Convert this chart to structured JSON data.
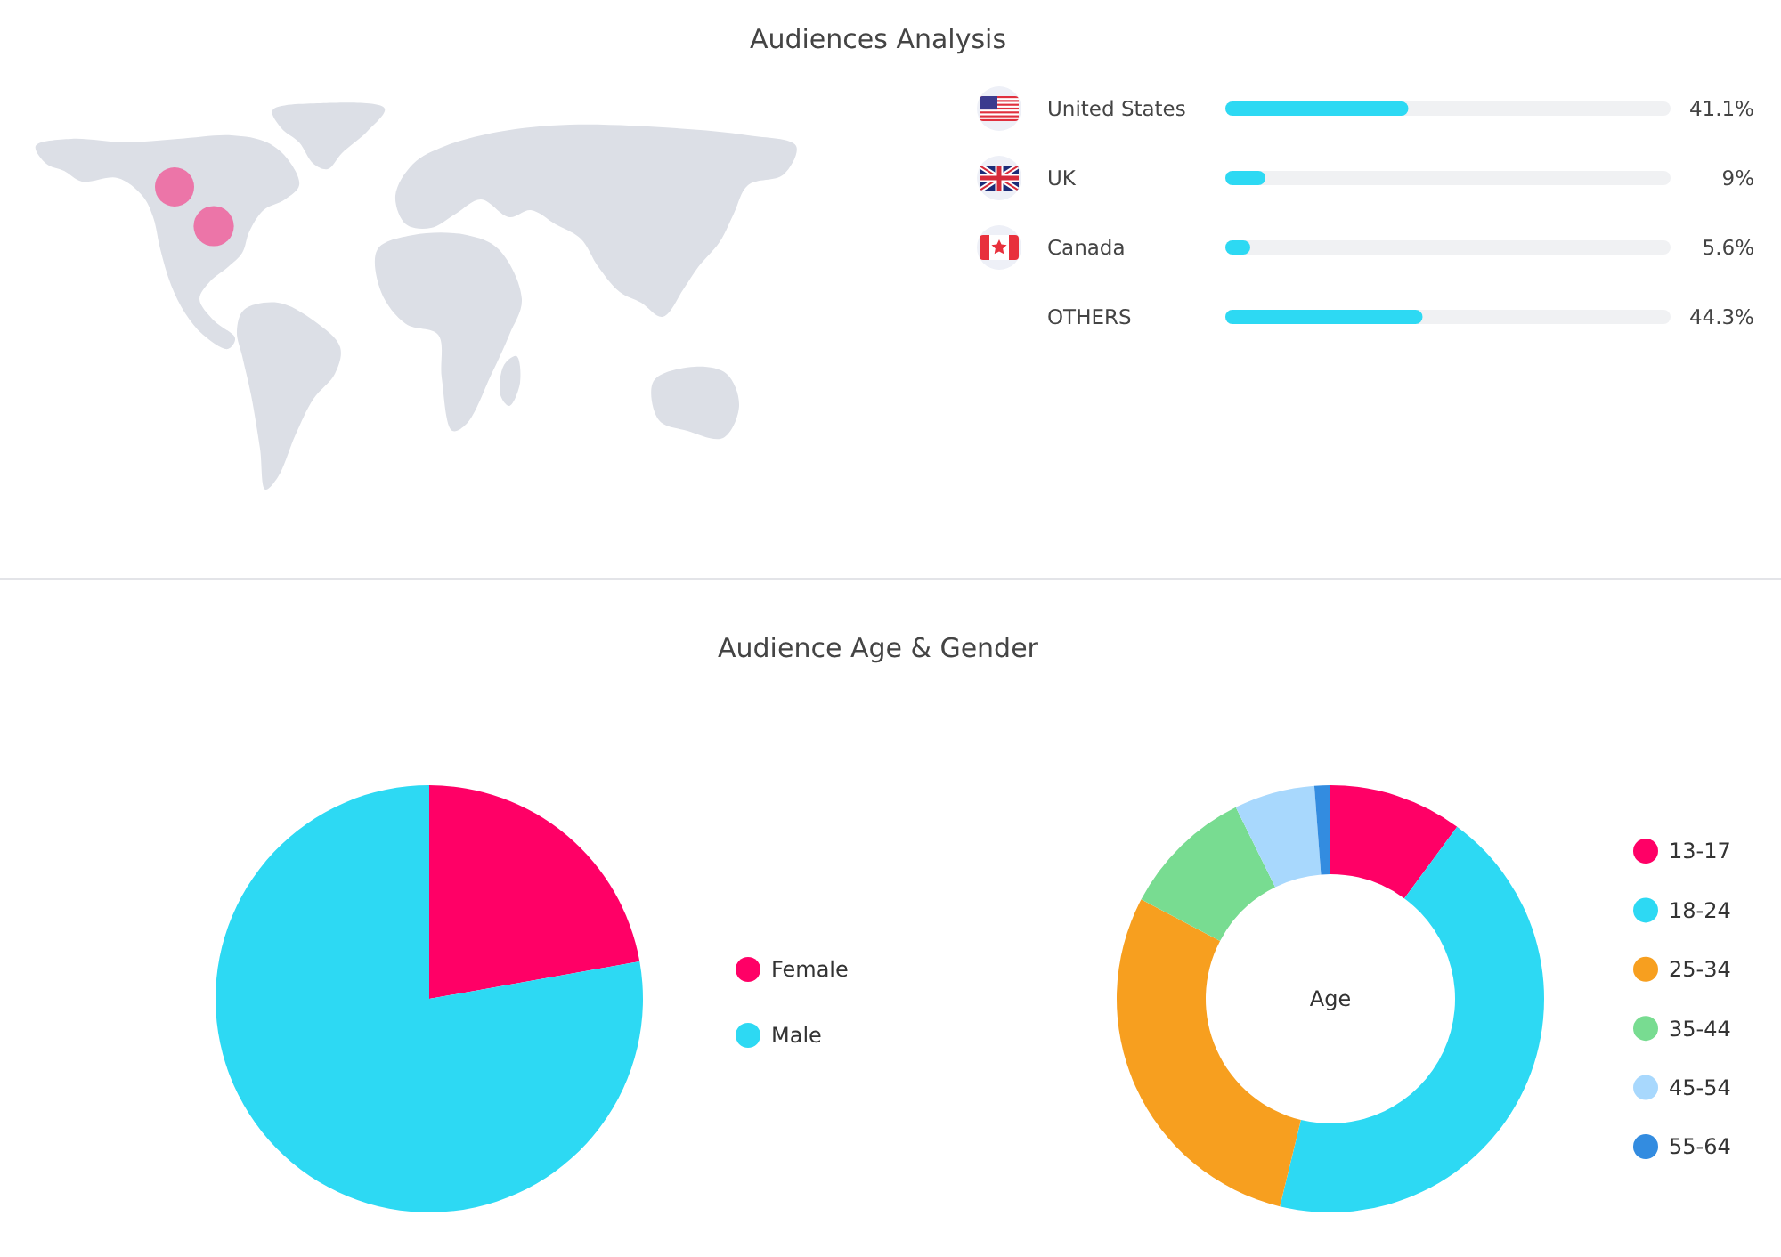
{
  "chart_data": [
    {
      "type": "bar",
      "orientation": "horizontal",
      "title": "Audiences Analysis",
      "categories": [
        "United States",
        "UK",
        "Canada",
        "OTHERS"
      ],
      "values": [
        41.1,
        9,
        5.6,
        44.3
      ],
      "color": "#2dd9f3",
      "xlim": [
        0,
        100
      ],
      "value_labels": [
        "41.1%",
        "9%",
        "5.6%",
        "44.3%"
      ],
      "tick_labels": "y"
    },
    {
      "type": "pie",
      "title": "Audience Age & Gender",
      "categories": [
        "Female",
        "Male"
      ],
      "values": [
        22.2,
        77.8
      ],
      "colors": [
        "#ff0066",
        "#2dd9f3"
      ],
      "legend": "right"
    },
    {
      "type": "donut",
      "categories": [
        "13-17",
        "18-24",
        "25-34",
        "35-44",
        "45-54",
        "55-64"
      ],
      "values": [
        10.1,
        43.7,
        28.9,
        10.0,
        6.1,
        1.2
      ],
      "colors": [
        "#ff0066",
        "#2dd9f3",
        "#f79f1f",
        "#78dc91",
        "#a8d8fd",
        "#338ce0"
      ],
      "legend": "right",
      "annotations": [
        "Age"
      ]
    }
  ]
}
